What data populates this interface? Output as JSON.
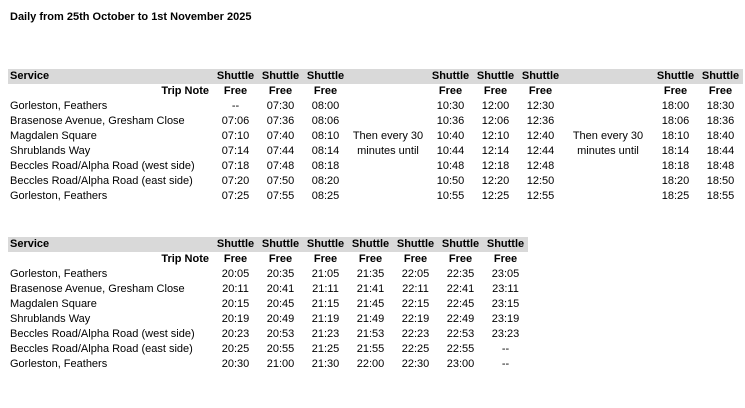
{
  "title": "Daily from 25th October to 1st November 2025",
  "labels": {
    "service": "Service",
    "trip_note": "Trip Note",
    "shuttle": "Shuttle",
    "free": "Free"
  },
  "colors": {
    "header_band": "#d9d9d9",
    "text": "#000000"
  },
  "tables": [
    {
      "group_sizes": [
        3,
        3,
        2
      ],
      "gap_notes": [
        "",
        "",
        "Then every 30",
        "minutes until",
        "",
        "",
        ""
      ],
      "rows": [
        {
          "stop": "Gorleston, Feathers",
          "groups": [
            [
              "--",
              "07:30",
              "08:00"
            ],
            [
              "10:30",
              "12:00",
              "12:30"
            ],
            [
              "18:00",
              "18:30"
            ]
          ]
        },
        {
          "stop": "Brasenose Avenue, Gresham Close",
          "groups": [
            [
              "07:06",
              "07:36",
              "08:06"
            ],
            [
              "10:36",
              "12:06",
              "12:36"
            ],
            [
              "18:06",
              "18:36"
            ]
          ]
        },
        {
          "stop": "Magdalen Square",
          "groups": [
            [
              "07:10",
              "07:40",
              "08:10"
            ],
            [
              "10:40",
              "12:10",
              "12:40"
            ],
            [
              "18:10",
              "18:40"
            ]
          ]
        },
        {
          "stop": "Shrublands Way",
          "groups": [
            [
              "07:14",
              "07:44",
              "08:14"
            ],
            [
              "10:44",
              "12:14",
              "12:44"
            ],
            [
              "18:14",
              "18:44"
            ]
          ]
        },
        {
          "stop": "Beccles Road/Alpha Road (west side)",
          "groups": [
            [
              "07:18",
              "07:48",
              "08:18"
            ],
            [
              "10:48",
              "12:18",
              "12:48"
            ],
            [
              "18:18",
              "18:48"
            ]
          ]
        },
        {
          "stop": "Beccles Road/Alpha Road (east side)",
          "groups": [
            [
              "07:20",
              "07:50",
              "08:20"
            ],
            [
              "10:50",
              "12:20",
              "12:50"
            ],
            [
              "18:20",
              "18:50"
            ]
          ]
        },
        {
          "stop": "Gorleston, Feathers",
          "groups": [
            [
              "07:25",
              "07:55",
              "08:25"
            ],
            [
              "10:55",
              "12:25",
              "12:55"
            ],
            [
              "18:25",
              "18:55"
            ]
          ]
        }
      ]
    },
    {
      "group_sizes": [
        7
      ],
      "gap_notes": [
        "",
        "",
        "",
        "",
        "",
        "",
        ""
      ],
      "rows": [
        {
          "stop": "Gorleston, Feathers",
          "groups": [
            [
              "20:05",
              "20:35",
              "21:05",
              "21:35",
              "22:05",
              "22:35",
              "23:05"
            ]
          ]
        },
        {
          "stop": "Brasenose Avenue, Gresham Close",
          "groups": [
            [
              "20:11",
              "20:41",
              "21:11",
              "21:41",
              "22:11",
              "22:41",
              "23:11"
            ]
          ]
        },
        {
          "stop": "Magdalen Square",
          "groups": [
            [
              "20:15",
              "20:45",
              "21:15",
              "21:45",
              "22:15",
              "22:45",
              "23:15"
            ]
          ]
        },
        {
          "stop": "Shrublands Way",
          "groups": [
            [
              "20:19",
              "20:49",
              "21:19",
              "21:49",
              "22:19",
              "22:49",
              "23:19"
            ]
          ]
        },
        {
          "stop": "Beccles Road/Alpha Road (west side)",
          "groups": [
            [
              "20:23",
              "20:53",
              "21:23",
              "21:53",
              "22:23",
              "22:53",
              "23:23"
            ]
          ]
        },
        {
          "stop": "Beccles Road/Alpha Road (east side)",
          "groups": [
            [
              "20:25",
              "20:55",
              "21:25",
              "21:55",
              "22:25",
              "22:55",
              "--"
            ]
          ]
        },
        {
          "stop": "Gorleston, Feathers",
          "groups": [
            [
              "20:30",
              "21:00",
              "21:30",
              "22:00",
              "22:30",
              "23:00",
              "--"
            ]
          ]
        }
      ]
    }
  ]
}
